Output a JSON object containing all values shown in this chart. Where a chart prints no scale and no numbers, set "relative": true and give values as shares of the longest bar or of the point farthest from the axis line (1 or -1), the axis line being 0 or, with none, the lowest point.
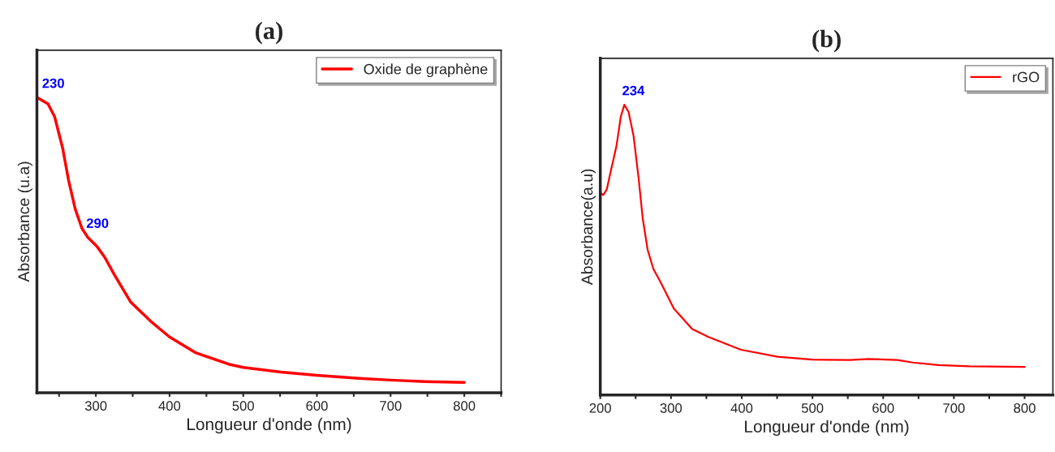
{
  "chart_data": [
    {
      "type": "line",
      "title": "(a)",
      "xlabel": "Longueur d'onde (nm)",
      "ylabel": "Absorbance (u.a)",
      "relative": true,
      "legend": "top right",
      "x": [
        220,
        235,
        244,
        255,
        263,
        272,
        281,
        289,
        301,
        312,
        325,
        347,
        374,
        400,
        436,
        480,
        500,
        551,
        600,
        657,
        700,
        746,
        800
      ],
      "series": [
        {
          "name": "Oxide de graphène",
          "color": "#ff0000",
          "values": [
            1.0,
            0.978,
            0.935,
            0.827,
            0.719,
            0.622,
            0.557,
            0.526,
            0.497,
            0.459,
            0.4,
            0.308,
            0.243,
            0.189,
            0.135,
            0.097,
            0.086,
            0.07,
            0.059,
            0.049,
            0.043,
            0.038,
            0.035
          ]
        }
      ],
      "xlim": [
        220,
        850
      ],
      "xticks": [
        {
          "value": 250,
          "label": null
        },
        300,
        {
          "value": 350,
          "label": null
        },
        400,
        {
          "value": 450,
          "label": null
        },
        500,
        {
          "value": 550,
          "label": null
        },
        600,
        {
          "value": 650,
          "label": null
        },
        700,
        {
          "value": 750,
          "label": null
        },
        800,
        {
          "value": 850,
          "label": null
        }
      ],
      "annotations": [
        {
          "text": "230",
          "x": 230,
          "y": 1.0
        },
        {
          "text": "290",
          "x": 290,
          "y": 0.526
        }
      ]
    },
    {
      "type": "line",
      "title": "(b)",
      "xlabel": "Longueur d'onde (nm)",
      "ylabel": "Absorbance(a.u)",
      "relative": true,
      "legend": "top right",
      "x": [
        200,
        204,
        209,
        215,
        223,
        229,
        234,
        240,
        247,
        254,
        260,
        267,
        275,
        286,
        304,
        330,
        353,
        399,
        451,
        500,
        553,
        580,
        620,
        642,
        678,
        722,
        800
      ],
      "series": [
        {
          "name": "rGO",
          "color": "#ff0000",
          "values": [
            0.697,
            0.689,
            0.707,
            0.773,
            0.86,
            0.959,
            1.0,
            0.975,
            0.893,
            0.751,
            0.609,
            0.5,
            0.435,
            0.385,
            0.298,
            0.227,
            0.2,
            0.156,
            0.132,
            0.122,
            0.121,
            0.124,
            0.121,
            0.112,
            0.103,
            0.099,
            0.097
          ]
        }
      ],
      "xlim": [
        200,
        840
      ],
      "xticks": [
        200,
        {
          "value": 250,
          "label": null
        },
        300,
        {
          "value": 350,
          "label": null
        },
        400,
        {
          "value": 450,
          "label": null
        },
        500,
        {
          "value": 550,
          "label": null
        },
        600,
        {
          "value": 650,
          "label": null
        },
        700,
        {
          "value": 750,
          "label": null
        },
        800
      ],
      "annotations": [
        {
          "text": "234",
          "x": 234,
          "y": 1.0
        }
      ]
    }
  ]
}
